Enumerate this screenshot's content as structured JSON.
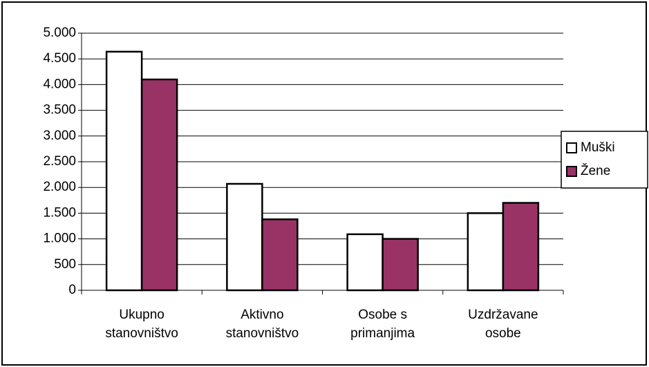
{
  "chart_data": {
    "type": "bar",
    "categories": [
      "Ukupno stanovništvo",
      "Aktivno stanovništvo",
      "Osobe s primanjima",
      "Uzdržavane osobe"
    ],
    "series": [
      {
        "name": "Muški",
        "color": "#ffffff",
        "values": [
          4640,
          2070,
          1090,
          1500
        ]
      },
      {
        "name": "Žene",
        "color": "#993366",
        "values": [
          4100,
          1380,
          1000,
          1700
        ]
      }
    ],
    "ylim": [
      0,
      5000
    ],
    "yticks": [
      0,
      500,
      {
        "value": 1000,
        "label": "1.000"
      },
      {
        "value": 1500,
        "label": "1.500"
      },
      {
        "value": 2000,
        "label": "2.000"
      },
      {
        "value": 2500,
        "label": "2.500"
      },
      {
        "value": 3000,
        "label": "3.000"
      },
      {
        "value": 3500,
        "label": "3.500"
      },
      {
        "value": 4000,
        "label": "4.000"
      },
      {
        "value": 4500,
        "label": "4.500"
      },
      {
        "value": 5000,
        "label": "5.000"
      }
    ],
    "grid": true,
    "legend": "right"
  }
}
